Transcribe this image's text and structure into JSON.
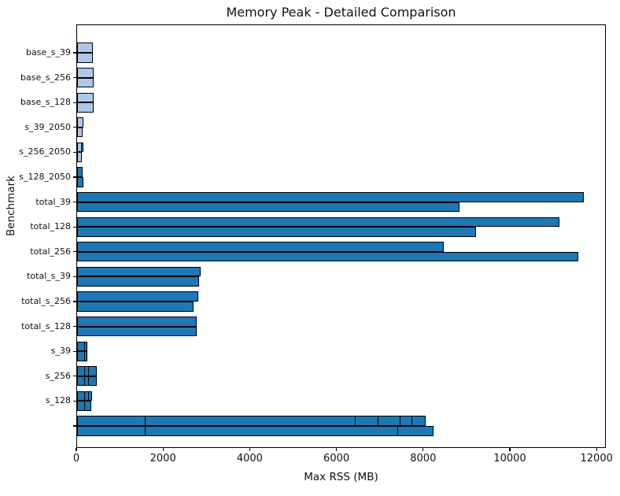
{
  "chart_data": {
    "type": "bar",
    "orientation": "horizontal",
    "title": "Memory Peak - Detailed Comparison",
    "xlabel": "Max RSS (MB)",
    "ylabel": "Benchmark",
    "xlim": [
      0,
      12214
    ],
    "xticks": [
      0,
      2000,
      4000,
      6000,
      8000,
      10000,
      12000
    ],
    "grid": false,
    "legend": "none",
    "colors": {
      "dark": "#1f77b4",
      "light": "#aec7e8",
      "edge": "#000000"
    },
    "rows": [
      {
        "label": "base_s_39",
        "bars": [
          {
            "segments": [
              {
                "value": 363,
                "color": "light"
              }
            ]
          },
          {
            "segments": [
              {
                "value": 363,
                "color": "light"
              }
            ]
          }
        ]
      },
      {
        "label": "base_s_256",
        "bars": [
          {
            "segments": [
              {
                "value": 374,
                "color": "light"
              }
            ]
          },
          {
            "segments": [
              {
                "value": 374,
                "color": "light"
              }
            ]
          }
        ]
      },
      {
        "label": "base_s_128",
        "bars": [
          {
            "segments": [
              {
                "value": 380,
                "color": "light"
              }
            ]
          },
          {
            "segments": [
              {
                "value": 380,
                "color": "light"
              }
            ]
          }
        ]
      },
      {
        "label": "s_39_2050",
        "bars": [
          {
            "segments": [
              {
                "value": 145,
                "color": "light"
              }
            ]
          },
          {
            "segments": [
              {
                "value": 130,
                "color": "light"
              }
            ]
          }
        ]
      },
      {
        "label": "s_256_2050",
        "bars": [
          {
            "segments": [
              {
                "value": 118,
                "color": "light"
              },
              {
                "value": 45,
                "color": "dark"
              }
            ]
          },
          {
            "segments": [
              {
                "value": 110,
                "color": "light"
              }
            ]
          }
        ]
      },
      {
        "label": "s_128_2050",
        "bars": [
          {
            "segments": [
              {
                "value": 130,
                "color": "dark"
              }
            ]
          },
          {
            "segments": [
              {
                "value": 150,
                "color": "dark"
              }
            ]
          }
        ]
      },
      {
        "label": "total_39",
        "bars": [
          {
            "segments": [
              {
                "value": 11690,
                "color": "dark"
              }
            ]
          },
          {
            "segments": [
              {
                "value": 8820,
                "color": "dark"
              }
            ]
          }
        ]
      },
      {
        "label": "total_128",
        "bars": [
          {
            "segments": [
              {
                "value": 11130,
                "color": "dark"
              }
            ]
          },
          {
            "segments": [
              {
                "value": 9200,
                "color": "dark"
              }
            ]
          }
        ]
      },
      {
        "label": "total_256",
        "bars": [
          {
            "segments": [
              {
                "value": 8460,
                "color": "dark"
              }
            ]
          },
          {
            "segments": [
              {
                "value": 11560,
                "color": "dark"
              }
            ]
          }
        ]
      },
      {
        "label": "total_s_39",
        "bars": [
          {
            "segments": [
              {
                "value": 2850,
                "color": "dark"
              }
            ]
          },
          {
            "segments": [
              {
                "value": 2815,
                "color": "dark"
              }
            ]
          }
        ]
      },
      {
        "label": "total_s_256",
        "bars": [
          {
            "segments": [
              {
                "value": 2785,
                "color": "dark"
              }
            ]
          },
          {
            "segments": [
              {
                "value": 2690,
                "color": "dark"
              }
            ]
          }
        ]
      },
      {
        "label": "total_s_128",
        "bars": [
          {
            "segments": [
              {
                "value": 2760,
                "color": "dark"
              }
            ]
          },
          {
            "segments": [
              {
                "value": 2760,
                "color": "dark"
              }
            ]
          }
        ]
      },
      {
        "label": "s_39",
        "bars": [
          {
            "segments": [
              {
                "value": 185,
                "color": "dark"
              },
              {
                "value": 75,
                "color": "dark"
              }
            ]
          },
          {
            "segments": [
              {
                "value": 185,
                "color": "dark"
              },
              {
                "value": 75,
                "color": "dark"
              }
            ]
          }
        ]
      },
      {
        "label": "s_256",
        "bars": [
          {
            "segments": [
              {
                "value": 185,
                "color": "dark"
              },
              {
                "value": 105,
                "color": "dark"
              },
              {
                "value": 215,
                "color": "dark"
              }
            ]
          },
          {
            "segments": [
              {
                "value": 185,
                "color": "dark"
              },
              {
                "value": 105,
                "color": "dark"
              },
              {
                "value": 215,
                "color": "dark"
              }
            ]
          }
        ]
      },
      {
        "label": "s_128",
        "bars": [
          {
            "segments": [
              {
                "value": 185,
                "color": "dark"
              },
              {
                "value": 105,
                "color": "dark"
              },
              {
                "value": 90,
                "color": "dark"
              }
            ]
          },
          {
            "segments": [
              {
                "value": 185,
                "color": "dark"
              },
              {
                "value": 160,
                "color": "dark"
              }
            ]
          }
        ]
      },
      {
        "label": "",
        "bars": [
          {
            "segments": [
              {
                "value": 1584,
                "color": "dark"
              },
              {
                "value": 4859,
                "color": "dark"
              },
              {
                "value": 550,
                "color": "dark"
              },
              {
                "value": 533,
                "color": "dark"
              },
              {
                "value": 301,
                "color": "dark"
              },
              {
                "value": 321,
                "color": "dark"
              }
            ]
          },
          {
            "segments": [
              {
                "value": 1584,
                "color": "dark"
              },
              {
                "value": 5851,
                "color": "dark"
              },
              {
                "value": 835,
                "color": "dark"
              }
            ]
          }
        ]
      }
    ]
  }
}
